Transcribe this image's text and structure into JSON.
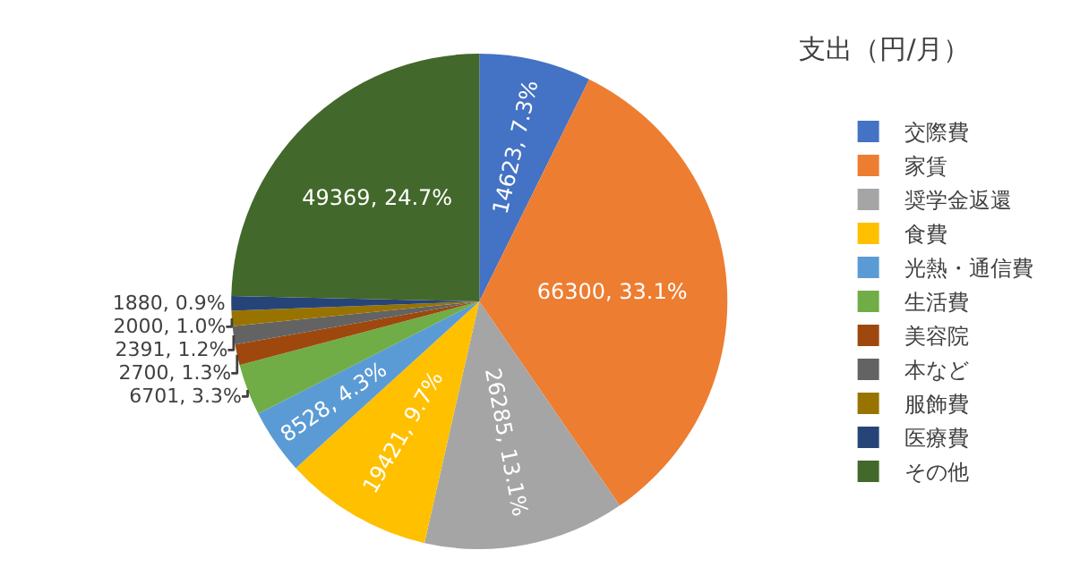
{
  "chart_data": {
    "type": "pie",
    "title": "支出（円/月）",
    "categories": [
      "交際費",
      "家賃",
      "奨学金返還",
      "食費",
      "光熱・通信費",
      "生活費",
      "美容院",
      "本など",
      "服飾費",
      "医療費",
      "その他"
    ],
    "values": [
      14623,
      66300,
      26285,
      19421,
      8528,
      6701,
      2700,
      2391,
      2000,
      1880,
      49369
    ],
    "value_labels": [
      "14623, 7.3%",
      "66300, 33.1%",
      "26285, 13.1%",
      "19421, 9.7%",
      "8528, 4.3%",
      "6701, 3.3%",
      "2700, 1.3%",
      "2391, 1.2%",
      "2000, 1.0%",
      "1880, 0.9%",
      "49369, 24.7%"
    ],
    "colors": [
      "#4472c4",
      "#ed7d31",
      "#a5a5a5",
      "#ffc000",
      "#5b9bd5",
      "#70ad47",
      "#9e480e",
      "#636363",
      "#997300",
      "#264478",
      "#43682b"
    ],
    "legend": "right"
  }
}
